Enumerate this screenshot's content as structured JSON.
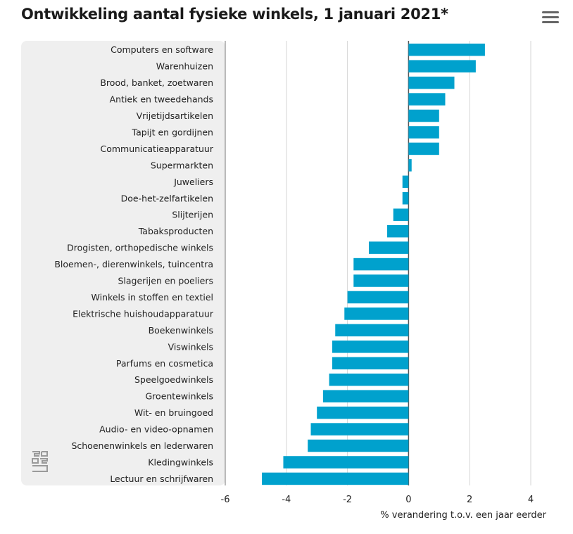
{
  "title": "Ontwikkeling aantal fysieke winkels, 1 januari 2021*",
  "menu_icon": "hamburger-menu-icon",
  "logo_icon": "cbs-logo-icon",
  "bar_color": "#00A1CD",
  "panel_color": "#EFEFEF",
  "chart_data": {
    "type": "bar",
    "orientation": "horizontal",
    "title": "Ontwikkeling aantal fysieke winkels, 1 januari 2021*",
    "xlabel": "% verandering t.o.v. een jaar eerder",
    "ylabel": "",
    "xlim": [
      -6,
      5
    ],
    "xticks": [
      -6,
      -4,
      -2,
      0,
      2,
      4
    ],
    "xtick_labels": [
      "-6",
      "-4",
      "-2",
      "0",
      "2",
      "4"
    ],
    "grid": true,
    "categories": [
      "Computers en software",
      "Warenhuizen",
      "Brood, banket, zoetwaren",
      "Antiek en tweedehands",
      "Vrijetijdsartikelen",
      "Tapijt en gordijnen",
      "Communicatieapparatuur",
      "Supermarkten",
      "Juweliers",
      "Doe-het-zelfartikelen",
      "Slijterijen",
      "Tabaksproducten",
      "Drogisten, orthopedische winkels",
      "Bloemen-, dierenwinkels, tuincentra",
      "Slagerijen en poeliers",
      "Winkels in stoffen en textiel",
      "Elektrische huishoudapparatuur",
      "Boekenwinkels",
      "Viswinkels",
      "Parfums en cosmetica",
      "Speelgoedwinkels",
      "Groentewinkels",
      "Wit- en bruingoed",
      "Audio- en video-opnamen",
      "Schoenenwinkels en lederwaren",
      "Kledingwinkels",
      "Lectuur en schrijfwaren"
    ],
    "values": [
      2.5,
      2.2,
      1.5,
      1.2,
      1.0,
      1.0,
      1.0,
      0.1,
      -0.2,
      -0.2,
      -0.5,
      -0.7,
      -1.3,
      -1.8,
      -1.8,
      -2.0,
      -2.1,
      -2.4,
      -2.5,
      -2.5,
      -2.6,
      -2.8,
      -3.0,
      -3.2,
      -3.3,
      -4.1,
      -4.8
    ]
  }
}
